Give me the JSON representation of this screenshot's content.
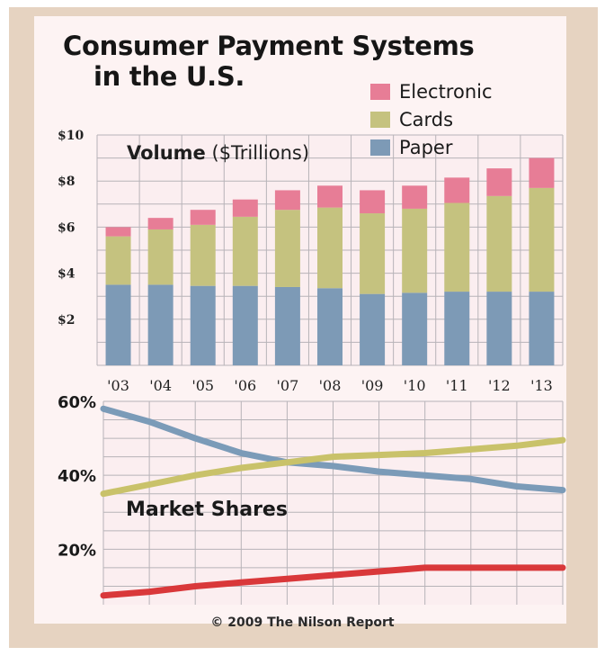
{
  "title_line1": "Consumer Payment Systems",
  "title_line2": "in the U.S.",
  "copyright": "© 2009 The Nilson Report",
  "colors": {
    "electronic": "#e77d96",
    "cards": "#c5c27f",
    "paper": "#7d9ab6",
    "cards_line": "#c9c26a",
    "paper_line": "#7b9bb8",
    "electronic_line": "#d9383a"
  },
  "chart_data": [
    {
      "type": "bar",
      "stacked": true,
      "title_bold": "Volume",
      "title_rest": "($Trillions)",
      "categories": [
        "'03",
        "'04",
        "'05",
        "'06",
        "'07",
        "'08",
        "'09",
        "'10",
        "'11",
        "'12",
        "'13"
      ],
      "ytick_labels": [
        "$2",
        "$4",
        "$6",
        "$8",
        "$10"
      ],
      "ylim": [
        0,
        10
      ],
      "grid": true,
      "legend_position": "top-right",
      "series": [
        {
          "name": "Paper",
          "values": [
            3.5,
            3.5,
            3.45,
            3.45,
            3.4,
            3.35,
            3.1,
            3.15,
            3.2,
            3.2,
            3.2
          ]
        },
        {
          "name": "Cards",
          "values": [
            2.1,
            2.4,
            2.65,
            3.0,
            3.35,
            3.5,
            3.5,
            3.65,
            3.85,
            4.15,
            4.5
          ]
        },
        {
          "name": "Electronic",
          "values": [
            0.4,
            0.5,
            0.65,
            0.75,
            0.85,
            0.95,
            1.0,
            1.0,
            1.1,
            1.2,
            1.3
          ]
        }
      ]
    },
    {
      "type": "line",
      "title": "Market Shares",
      "categories": [
        "'03",
        "'04",
        "'05",
        "'06",
        "'07",
        "'08",
        "'09",
        "'10",
        "'11",
        "'12",
        "'13"
      ],
      "ytick_labels": [
        "20%",
        "40%",
        "60%"
      ],
      "ylim": [
        5,
        60
      ],
      "grid": true,
      "series": [
        {
          "key": "paper",
          "values": [
            58,
            54.5,
            50,
            46,
            43.5,
            42.5,
            41,
            40,
            39,
            37,
            36
          ]
        },
        {
          "key": "cards",
          "values": [
            35,
            37.5,
            40,
            42,
            43.5,
            45,
            45.5,
            46,
            47,
            48,
            49.5
          ]
        },
        {
          "key": "electronic",
          "values": [
            7.5,
            8.5,
            10,
            11,
            12,
            13,
            14,
            15,
            15,
            15,
            15
          ]
        }
      ]
    }
  ]
}
